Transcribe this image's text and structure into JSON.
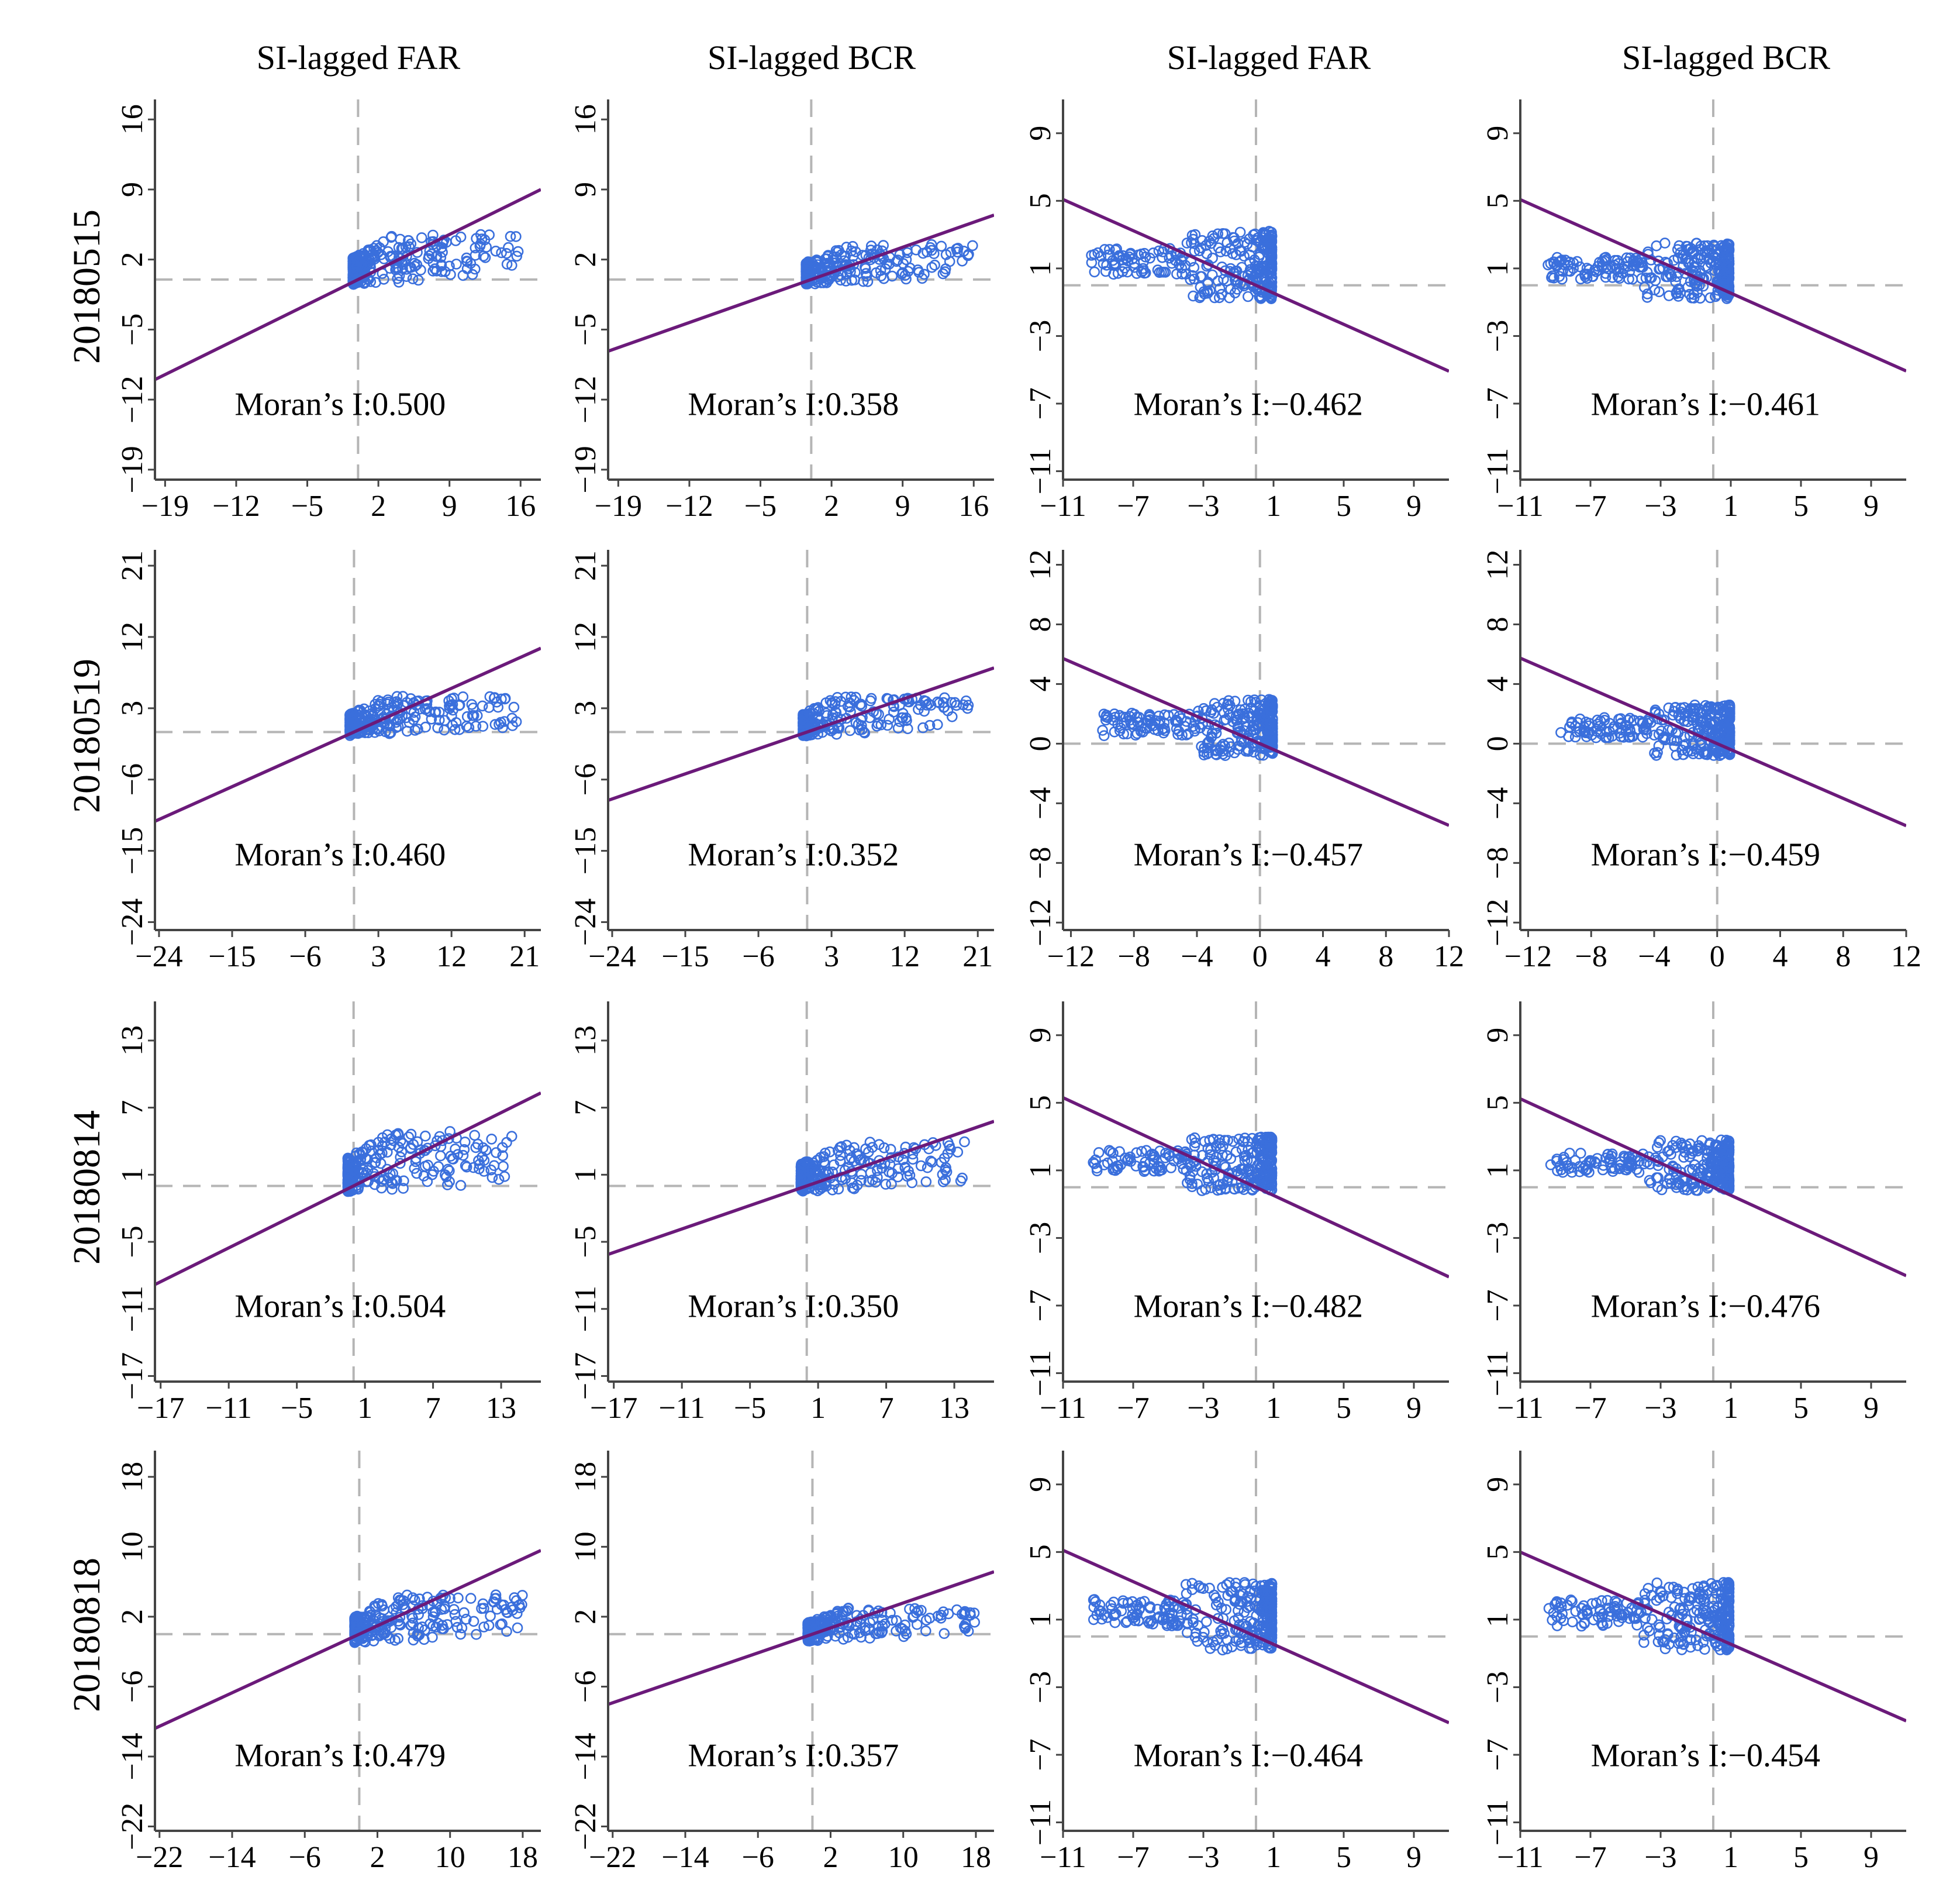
{
  "figure": {
    "column_titles": [
      "SI-lagged FAR",
      "SI-lagged BCR",
      "SI-lagged FAR",
      "SI-lagged BCR"
    ],
    "row_titles": [
      "20180515",
      "20180519",
      "20180814",
      "20180818"
    ],
    "colors": {
      "points": "#3a6fdc",
      "line": "#6b1a7a",
      "guides": "#b5b5b5",
      "axes": "#444444"
    }
  },
  "chart_data": [
    {
      "type": "scatter",
      "row": "20180515",
      "column": "SI-lagged FAR",
      "annotation": "Moran’s I:0.500",
      "slope": 0.5,
      "xlim": [
        -20,
        18
      ],
      "ylim": [
        -20,
        18
      ],
      "x_ticks": [
        -19,
        -12,
        -5,
        2,
        9,
        16
      ],
      "x_tick_labels": [
        "−19",
        "−12",
        "−5",
        "2",
        "9",
        "16"
      ],
      "y_ticks": [
        -19,
        -12,
        -5,
        2,
        9,
        16
      ],
      "y_tick_labels": [
        "−19",
        "−12",
        "−5",
        "2",
        "9",
        "16"
      ],
      "cluster": {
        "x_range": [
          -0.5,
          16
        ],
        "y_range": [
          -0.5,
          4.5
        ],
        "count": 260
      }
    },
    {
      "type": "scatter",
      "row": "20180515",
      "column": "SI-lagged BCR",
      "annotation": "Moran’s I:0.358",
      "slope": 0.358,
      "xlim": [
        -20,
        18
      ],
      "ylim": [
        -20,
        18
      ],
      "x_ticks": [
        -19,
        -12,
        -5,
        2,
        9,
        16
      ],
      "x_tick_labels": [
        "−19",
        "−12",
        "−5",
        "2",
        "9",
        "16"
      ],
      "y_ticks": [
        -19,
        -12,
        -5,
        2,
        9,
        16
      ],
      "y_tick_labels": [
        "−19",
        "−12",
        "−5",
        "2",
        "9",
        "16"
      ],
      "cluster": {
        "x_range": [
          -0.5,
          16
        ],
        "y_range": [
          -0.5,
          3.5
        ],
        "count": 240
      }
    },
    {
      "type": "scatter",
      "row": "20180515",
      "column": "SI-lagged FAR",
      "annotation": "Moran’s I:−0.462",
      "slope": -0.462,
      "xlim": [
        -11,
        11
      ],
      "ylim": [
        -11.5,
        11
      ],
      "x_ticks": [
        -11,
        -7,
        -3,
        1,
        5,
        9
      ],
      "x_tick_labels": [
        "−11",
        "−7",
        "−3",
        "1",
        "5",
        "9"
      ],
      "y_ticks": [
        -11,
        -7,
        -3,
        1,
        5,
        9
      ],
      "y_tick_labels": [
        "−11",
        "−7",
        "−3",
        "1",
        "5",
        "9"
      ],
      "cluster": {
        "x_range": [
          -9.5,
          0.9
        ],
        "y_range": [
          -0.8,
          3.2
        ],
        "count": 320
      }
    },
    {
      "type": "scatter",
      "row": "20180515",
      "column": "SI-lagged BCR",
      "annotation": "Moran’s I:−0.461",
      "slope": -0.461,
      "xlim": [
        -11,
        11
      ],
      "ylim": [
        -11.5,
        11
      ],
      "x_ticks": [
        -11,
        -7,
        -3,
        1,
        5,
        9
      ],
      "x_tick_labels": [
        "−11",
        "−7",
        "−3",
        "1",
        "5",
        "9"
      ],
      "y_ticks": [
        -11,
        -7,
        -3,
        1,
        5,
        9
      ],
      "y_tick_labels": [
        "−11",
        "−7",
        "−3",
        "1",
        "5",
        "9"
      ],
      "cluster": {
        "x_range": [
          -9.5,
          0.9
        ],
        "y_range": [
          -0.8,
          2.5
        ],
        "count": 320
      }
    },
    {
      "type": "scatter",
      "row": "20180519",
      "column": "SI-lagged FAR",
      "annotation": "Moran’s I:0.460",
      "slope": 0.46,
      "xlim": [
        -24.5,
        23
      ],
      "ylim": [
        -25,
        23
      ],
      "x_ticks": [
        -24,
        -15,
        -6,
        3,
        12,
        21
      ],
      "x_tick_labels": [
        "−24",
        "−15",
        "−6",
        "3",
        "12",
        "21"
      ],
      "y_ticks": [
        -24,
        -15,
        -6,
        3,
        12,
        21
      ],
      "y_tick_labels": [
        "−24",
        "−15",
        "−6",
        "3",
        "12",
        "21"
      ],
      "cluster": {
        "x_range": [
          -0.5,
          20
        ],
        "y_range": [
          -0.5,
          4.5
        ],
        "count": 260
      }
    },
    {
      "type": "scatter",
      "row": "20180519",
      "column": "SI-lagged BCR",
      "annotation": "Moran’s I:0.352",
      "slope": 0.352,
      "xlim": [
        -24.5,
        23
      ],
      "ylim": [
        -25,
        23
      ],
      "x_ticks": [
        -24,
        -15,
        -6,
        3,
        12,
        21
      ],
      "x_tick_labels": [
        "−24",
        "−15",
        "−6",
        "3",
        "12",
        "21"
      ],
      "y_ticks": [
        -24,
        -15,
        -6,
        3,
        12,
        21
      ],
      "y_tick_labels": [
        "−24",
        "−15",
        "−6",
        "3",
        "12",
        "21"
      ],
      "cluster": {
        "x_range": [
          -0.5,
          20
        ],
        "y_range": [
          -0.5,
          4.5
        ],
        "count": 240
      }
    },
    {
      "type": "scatter",
      "row": "20180519",
      "column": "SI-lagged FAR",
      "annotation": "Moran’s I:−0.457",
      "slope": -0.457,
      "xlim": [
        -12.5,
        12
      ],
      "ylim": [
        -12.5,
        13
      ],
      "x_ticks": [
        -12,
        -8,
        -4,
        0,
        4,
        8,
        12
      ],
      "x_tick_labels": [
        "−12",
        "−8",
        "−4",
        "0",
        "4",
        "8",
        "12"
      ],
      "y_ticks": [
        -12,
        -8,
        -4,
        0,
        4,
        8,
        12
      ],
      "y_tick_labels": [
        "−12",
        "−8",
        "−4",
        "0",
        "4",
        "8",
        "12"
      ],
      "cluster": {
        "x_range": [
          -10,
          0.8
        ],
        "y_range": [
          -0.8,
          3.0
        ],
        "count": 320
      }
    },
    {
      "type": "scatter",
      "row": "20180519",
      "column": "SI-lagged BCR",
      "annotation": "Moran’s I:−0.459",
      "slope": -0.459,
      "xlim": [
        -12.5,
        12
      ],
      "ylim": [
        -12.5,
        13
      ],
      "x_ticks": [
        -12,
        -8,
        -4,
        0,
        4,
        8,
        12
      ],
      "x_tick_labels": [
        "−12",
        "−8",
        "−4",
        "0",
        "4",
        "8",
        "12"
      ],
      "y_ticks": [
        -12,
        -8,
        -4,
        0,
        4,
        8,
        12
      ],
      "y_tick_labels": [
        "−12",
        "−8",
        "−4",
        "0",
        "4",
        "8",
        "12"
      ],
      "cluster": {
        "x_range": [
          -10,
          0.8
        ],
        "y_range": [
          -0.8,
          2.6
        ],
        "count": 320
      }
    },
    {
      "type": "scatter",
      "row": "20180814",
      "column": "SI-lagged FAR",
      "annotation": "Moran’s I:0.504",
      "slope": 0.504,
      "xlim": [
        -17.5,
        16.5
      ],
      "ylim": [
        -17.5,
        16.5
      ],
      "x_ticks": [
        -17,
        -11,
        -5,
        1,
        7,
        13
      ],
      "x_tick_labels": [
        "−17",
        "−11",
        "−5",
        "1",
        "7",
        "13"
      ],
      "y_ticks": [
        -17,
        -11,
        -5,
        1,
        7,
        13
      ],
      "y_tick_labels": [
        "−17",
        "−11",
        "−5",
        "1",
        "7",
        "13"
      ],
      "cluster": {
        "x_range": [
          -0.5,
          14
        ],
        "y_range": [
          -0.5,
          5.0
        ],
        "count": 260
      }
    },
    {
      "type": "scatter",
      "row": "20180814",
      "column": "SI-lagged BCR",
      "annotation": "Moran’s I:0.350",
      "slope": 0.35,
      "xlim": [
        -17.5,
        16.5
      ],
      "ylim": [
        -17.5,
        16.5
      ],
      "x_ticks": [
        -17,
        -11,
        -5,
        1,
        7,
        13
      ],
      "x_tick_labels": [
        "−17",
        "−11",
        "−5",
        "1",
        "7",
        "13"
      ],
      "y_ticks": [
        -17,
        -11,
        -5,
        1,
        7,
        13
      ],
      "y_tick_labels": [
        "−17",
        "−11",
        "−5",
        "1",
        "7",
        "13"
      ],
      "cluster": {
        "x_range": [
          -0.5,
          14
        ],
        "y_range": [
          -0.5,
          4.0
        ],
        "count": 240
      }
    },
    {
      "type": "scatter",
      "row": "20180814",
      "column": "SI-lagged FAR",
      "annotation": "Moran’s I:−0.482",
      "slope": -0.482,
      "xlim": [
        -11,
        11
      ],
      "ylim": [
        -11.5,
        11
      ],
      "x_ticks": [
        -11,
        -7,
        -3,
        1,
        5,
        9
      ],
      "x_tick_labels": [
        "−11",
        "−7",
        "−3",
        "1",
        "5",
        "9"
      ],
      "y_ticks": [
        -11,
        -7,
        -3,
        1,
        5,
        9
      ],
      "y_tick_labels": [
        "−11",
        "−7",
        "−3",
        "1",
        "5",
        "9"
      ],
      "cluster": {
        "x_range": [
          -9.5,
          0.9
        ],
        "y_range": [
          -0.2,
          3.0
        ],
        "count": 320
      }
    },
    {
      "type": "scatter",
      "row": "20180814",
      "column": "SI-lagged BCR",
      "annotation": "Moran’s I:−0.476",
      "slope": -0.476,
      "xlim": [
        -11,
        11
      ],
      "ylim": [
        -11.5,
        11
      ],
      "x_ticks": [
        -11,
        -7,
        -3,
        1,
        5,
        9
      ],
      "x_tick_labels": [
        "−11",
        "−7",
        "−3",
        "1",
        "5",
        "9"
      ],
      "y_ticks": [
        -11,
        -7,
        -3,
        1,
        5,
        9
      ],
      "y_tick_labels": [
        "−11",
        "−7",
        "−3",
        "1",
        "5",
        "9"
      ],
      "cluster": {
        "x_range": [
          -9.5,
          0.9
        ],
        "y_range": [
          -0.2,
          2.8
        ],
        "count": 320
      }
    },
    {
      "type": "scatter",
      "row": "20180818",
      "column": "SI-lagged FAR",
      "annotation": "Moran’s I:0.479",
      "slope": 0.479,
      "xlim": [
        -22.5,
        20
      ],
      "ylim": [
        -22.5,
        21
      ],
      "x_ticks": [
        -22,
        -14,
        -6,
        2,
        10,
        18
      ],
      "x_tick_labels": [
        "−22",
        "−14",
        "−6",
        "2",
        "10",
        "18"
      ],
      "y_ticks": [
        -22,
        -14,
        -6,
        2,
        10,
        18
      ],
      "y_tick_labels": [
        "−22",
        "−14",
        "−6",
        "2",
        "10",
        "18"
      ],
      "cluster": {
        "x_range": [
          -0.5,
          18
        ],
        "y_range": [
          -1.0,
          4.5
        ],
        "count": 260
      }
    },
    {
      "type": "scatter",
      "row": "20180818",
      "column": "SI-lagged BCR",
      "annotation": "Moran’s I:0.357",
      "slope": 0.357,
      "xlim": [
        -22.5,
        20
      ],
      "ylim": [
        -22.5,
        21
      ],
      "x_ticks": [
        -22,
        -14,
        -6,
        2,
        10,
        18
      ],
      "x_tick_labels": [
        "−22",
        "−14",
        "−6",
        "2",
        "10",
        "18"
      ],
      "y_ticks": [
        -22,
        -14,
        -6,
        2,
        10,
        18
      ],
      "y_tick_labels": [
        "−22",
        "−14",
        "−6",
        "2",
        "10",
        "18"
      ],
      "cluster": {
        "x_range": [
          -0.5,
          18
        ],
        "y_range": [
          -0.8,
          3.0
        ],
        "count": 240
      }
    },
    {
      "type": "scatter",
      "row": "20180818",
      "column": "SI-lagged FAR",
      "annotation": "Moran’s I:−0.464",
      "slope": -0.464,
      "xlim": [
        -11,
        11
      ],
      "ylim": [
        -11.5,
        11
      ],
      "x_ticks": [
        -11,
        -7,
        -3,
        1,
        5,
        9
      ],
      "x_tick_labels": [
        "−11",
        "−7",
        "−3",
        "1",
        "5",
        "9"
      ],
      "y_ticks": [
        -11,
        -7,
        -3,
        1,
        5,
        9
      ],
      "y_tick_labels": [
        "−11",
        "−7",
        "−3",
        "1",
        "5",
        "9"
      ],
      "cluster": {
        "x_range": [
          -9.5,
          0.9
        ],
        "y_range": [
          -0.8,
          3.2
        ],
        "count": 320
      }
    },
    {
      "type": "scatter",
      "row": "20180818",
      "column": "SI-lagged BCR",
      "annotation": "Moran’s I:−0.454",
      "slope": -0.454,
      "xlim": [
        -11,
        11
      ],
      "ylim": [
        -11.5,
        11
      ],
      "x_ticks": [
        -11,
        -7,
        -3,
        1,
        5,
        9
      ],
      "x_tick_labels": [
        "−11",
        "−7",
        "−3",
        "1",
        "5",
        "9"
      ],
      "y_ticks": [
        -11,
        -7,
        -3,
        1,
        5,
        9
      ],
      "y_tick_labels": [
        "−11",
        "−7",
        "−3",
        "1",
        "5",
        "9"
      ],
      "cluster": {
        "x_range": [
          -9.5,
          0.9
        ],
        "y_range": [
          -0.8,
          3.2
        ],
        "count": 320
      }
    }
  ]
}
